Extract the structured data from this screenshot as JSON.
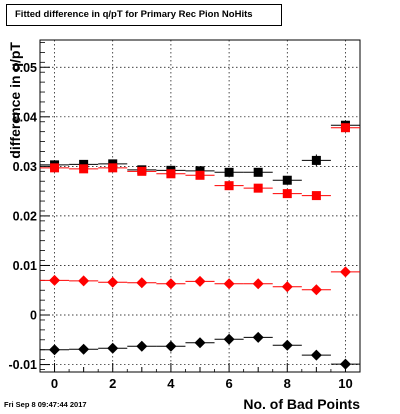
{
  "chart_data": {
    "type": "scatter",
    "title": "Fitted difference in q/pT for Primary Rec Pion NoHits",
    "xlabel": "No. of Bad Points",
    "ylabel": "difference in q/pT",
    "xlim": [
      -0.5,
      10.5
    ],
    "ylim": [
      -0.0115,
      0.0555
    ],
    "xticks": [
      "0",
      "2",
      "4",
      "6",
      "8",
      "10"
    ],
    "yticks": [
      "-0.01",
      "0",
      "0.01",
      "0.02",
      "0.03",
      "0.04",
      "0.05"
    ],
    "grid": true,
    "series": [
      {
        "marker": "square",
        "color": "#000000",
        "x": [
          0,
          1,
          2,
          3,
          4,
          5,
          6,
          7,
          8,
          9,
          10
        ],
        "y": [
          0.0303,
          0.0304,
          0.0305,
          0.0293,
          0.0292,
          0.0291,
          0.0288,
          0.0288,
          0.0272,
          0.0312,
          0.0383
        ],
        "yerr": [
          0.0005,
          0.0005,
          0.0005,
          0.0005,
          0.0005,
          0.0005,
          0.0005,
          0.0005,
          0.0008,
          0.0012,
          0.0008
        ]
      },
      {
        "marker": "square",
        "color": "#ff0000",
        "x": [
          0,
          1,
          2,
          3,
          4,
          5,
          6,
          7,
          8,
          9,
          10
        ],
        "y": [
          0.0297,
          0.0295,
          0.0297,
          0.029,
          0.0285,
          0.0282,
          0.0261,
          0.0256,
          0.0245,
          0.0241,
          0.0378
        ],
        "yerr": [
          0.0005,
          0.0005,
          0.0005,
          0.0005,
          0.0005,
          0.0005,
          0.0005,
          0.0005,
          0.0005,
          0.0006,
          0.0008
        ]
      },
      {
        "marker": "diamond",
        "color": "#ff0000",
        "x": [
          0,
          1,
          2,
          3,
          4,
          5,
          6,
          7,
          8,
          9,
          10
        ],
        "y": [
          0.007,
          0.0069,
          0.0066,
          0.0065,
          0.0063,
          0.0068,
          0.0063,
          0.0063,
          0.0057,
          0.0051,
          0.0087
        ],
        "yerr": [
          0.0003,
          0.0003,
          0.0003,
          0.0003,
          0.0003,
          0.0003,
          0.0003,
          0.0003,
          0.0003,
          0.0003,
          0.0004
        ]
      },
      {
        "marker": "diamond",
        "color": "#000000",
        "x": [
          0,
          1,
          2,
          3,
          4,
          5,
          6,
          7,
          8,
          9,
          10
        ],
        "y": [
          -0.007,
          -0.0069,
          -0.0067,
          -0.0063,
          -0.0063,
          -0.0056,
          -0.0049,
          -0.0045,
          -0.0061,
          -0.0081,
          -0.0099
        ],
        "yerr": [
          0.0003,
          0.0003,
          0.0003,
          0.0003,
          0.0003,
          0.0003,
          0.0003,
          0.0003,
          0.0004,
          0.0006,
          0.0004
        ]
      }
    ]
  },
  "footer": "Fri Sep  8 09:47:44 2017"
}
